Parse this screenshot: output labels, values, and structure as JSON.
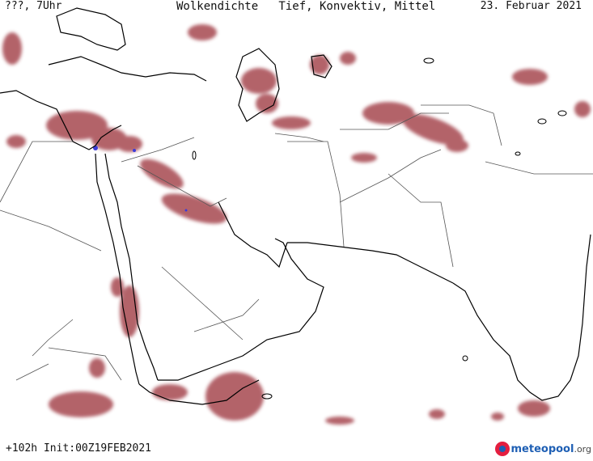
{
  "header": {
    "left": "???, 7Uhr",
    "title": "Wolkendichte   Tief, Konvektiv, Mittel",
    "date": "23. Februar 2021"
  },
  "footer": {
    "init": "+102h Init:00Z19FEB2021",
    "brand_main": "meteopool",
    "brand_tld": ".org"
  },
  "colors": {
    "cloud": "#a6464f",
    "cloud_light": "#c98b8f",
    "convective": "#3b3bd9",
    "coast": "#000000",
    "border": "#555555",
    "brand": "#1e5fb4"
  }
}
